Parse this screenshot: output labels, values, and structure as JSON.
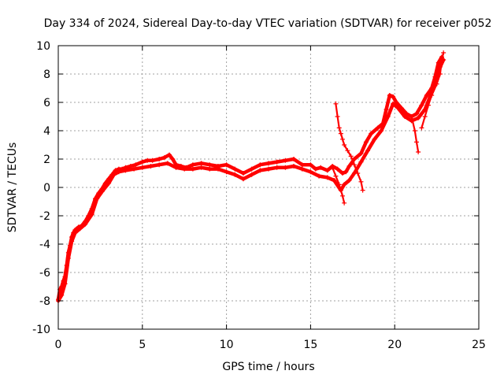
{
  "chart_data": {
    "type": "scatter",
    "title": "Day 334 of 2024, Sidereal Day-to-day VTEC variation (SDTVAR) for receiver p052",
    "xlabel": "GPS time / hours",
    "ylabel": "SDTVAR / TECUs",
    "xlim": [
      0,
      25
    ],
    "ylim": [
      -10,
      10
    ],
    "x_ticks": [
      0,
      5,
      10,
      15,
      20,
      25
    ],
    "y_ticks": [
      -10,
      -8,
      -6,
      -4,
      -2,
      0,
      2,
      4,
      6,
      8,
      10
    ],
    "grid": true,
    "marker": "+",
    "color": "#ff0000",
    "series": [
      {
        "points": [
          [
            0.0,
            -7.9
          ],
          [
            0.1,
            -7.2
          ],
          [
            0.2,
            -7.0
          ],
          [
            0.3,
            -6.6
          ],
          [
            0.4,
            -6.3
          ],
          [
            0.5,
            -5.5
          ],
          [
            0.6,
            -4.6
          ],
          [
            0.7,
            -4.1
          ],
          [
            0.8,
            -3.5
          ],
          [
            0.9,
            -3.2
          ],
          [
            1.0,
            -3.0
          ],
          [
            1.2,
            -2.8
          ],
          [
            1.4,
            -2.7
          ],
          [
            1.6,
            -2.4
          ],
          [
            1.8,
            -2.0
          ],
          [
            2.0,
            -1.5
          ],
          [
            2.2,
            -0.8
          ],
          [
            2.4,
            -0.4
          ],
          [
            2.6,
            -0.1
          ],
          [
            2.8,
            0.3
          ],
          [
            3.0,
            0.6
          ],
          [
            3.2,
            0.9
          ],
          [
            3.4,
            1.2
          ],
          [
            3.6,
            1.3
          ],
          [
            3.8,
            1.3
          ],
          [
            4.0,
            1.4
          ],
          [
            4.3,
            1.5
          ],
          [
            4.6,
            1.6
          ],
          [
            5.0,
            1.8
          ],
          [
            5.3,
            1.9
          ],
          [
            5.6,
            1.9
          ],
          [
            6.0,
            2.0
          ],
          [
            6.3,
            2.1
          ],
          [
            6.6,
            2.3
          ],
          [
            6.8,
            2.0
          ],
          [
            7.0,
            1.6
          ],
          [
            7.3,
            1.5
          ],
          [
            7.6,
            1.4
          ],
          [
            8.0,
            1.6
          ],
          [
            8.5,
            1.7
          ],
          [
            9.0,
            1.6
          ],
          [
            9.5,
            1.5
          ],
          [
            10.0,
            1.6
          ],
          [
            10.5,
            1.3
          ],
          [
            11.0,
            1.0
          ],
          [
            11.5,
            1.3
          ],
          [
            12.0,
            1.6
          ],
          [
            12.5,
            1.7
          ],
          [
            13.0,
            1.8
          ],
          [
            13.5,
            1.9
          ],
          [
            14.0,
            2.0
          ],
          [
            14.5,
            1.6
          ],
          [
            15.0,
            1.6
          ],
          [
            15.3,
            1.3
          ],
          [
            15.6,
            1.4
          ],
          [
            16.0,
            1.2
          ],
          [
            16.3,
            1.5
          ],
          [
            16.6,
            1.3
          ],
          [
            16.9,
            1.0
          ],
          [
            17.1,
            1.1
          ],
          [
            17.3,
            1.5
          ],
          [
            17.6,
            2.0
          ],
          [
            18.0,
            2.4
          ],
          [
            18.3,
            3.2
          ],
          [
            18.6,
            3.8
          ],
          [
            19.0,
            4.2
          ],
          [
            19.3,
            4.5
          ],
          [
            19.5,
            5.5
          ],
          [
            19.7,
            6.5
          ],
          [
            19.9,
            6.4
          ],
          [
            20.1,
            6.0
          ],
          [
            20.4,
            5.6
          ],
          [
            20.7,
            5.2
          ],
          [
            21.0,
            5.0
          ],
          [
            21.3,
            5.2
          ],
          [
            21.6,
            5.8
          ],
          [
            21.9,
            6.5
          ],
          [
            22.2,
            7.0
          ],
          [
            22.4,
            7.8
          ],
          [
            22.6,
            8.8
          ],
          [
            22.8,
            9.2
          ]
        ]
      },
      {
        "points": [
          [
            0.0,
            -8.0
          ],
          [
            0.2,
            -7.6
          ],
          [
            0.4,
            -6.8
          ],
          [
            0.6,
            -5.0
          ],
          [
            0.8,
            -3.8
          ],
          [
            1.0,
            -3.2
          ],
          [
            1.3,
            -2.9
          ],
          [
            1.6,
            -2.6
          ],
          [
            2.0,
            -1.9
          ],
          [
            2.3,
            -0.8
          ],
          [
            2.6,
            -0.3
          ],
          [
            3.0,
            0.3
          ],
          [
            3.3,
            0.9
          ],
          [
            3.6,
            1.1
          ],
          [
            4.0,
            1.2
          ],
          [
            4.5,
            1.3
          ],
          [
            5.0,
            1.4
          ],
          [
            5.5,
            1.5
          ],
          [
            6.0,
            1.6
          ],
          [
            6.5,
            1.7
          ],
          [
            7.0,
            1.4
          ],
          [
            7.5,
            1.3
          ],
          [
            8.0,
            1.3
          ],
          [
            8.5,
            1.4
          ],
          [
            9.0,
            1.3
          ],
          [
            9.5,
            1.3
          ],
          [
            10.0,
            1.1
          ],
          [
            10.5,
            0.9
          ],
          [
            11.0,
            0.6
          ],
          [
            11.5,
            0.9
          ],
          [
            12.0,
            1.2
          ],
          [
            12.5,
            1.3
          ],
          [
            13.0,
            1.4
          ],
          [
            13.5,
            1.4
          ],
          [
            14.0,
            1.5
          ],
          [
            14.5,
            1.3
          ],
          [
            15.0,
            1.1
          ],
          [
            15.5,
            0.8
          ],
          [
            16.0,
            0.7
          ],
          [
            16.4,
            0.5
          ],
          [
            16.8,
            -0.2
          ],
          [
            17.0,
            0.2
          ],
          [
            17.3,
            0.5
          ],
          [
            17.6,
            1.0
          ],
          [
            18.0,
            1.8
          ],
          [
            18.4,
            2.6
          ],
          [
            18.8,
            3.4
          ],
          [
            19.2,
            4.0
          ],
          [
            19.6,
            5.0
          ],
          [
            19.9,
            5.9
          ],
          [
            20.2,
            5.6
          ],
          [
            20.6,
            5.0
          ],
          [
            21.0,
            4.7
          ],
          [
            21.4,
            4.9
          ],
          [
            21.8,
            5.5
          ],
          [
            22.1,
            6.4
          ],
          [
            22.4,
            7.2
          ],
          [
            22.7,
            8.5
          ],
          [
            22.9,
            9.0
          ]
        ]
      },
      {
        "points": [
          [
            16.5,
            5.9
          ],
          [
            16.6,
            5.0
          ],
          [
            16.7,
            4.2
          ],
          [
            16.8,
            3.8
          ],
          [
            16.9,
            3.4
          ],
          [
            17.0,
            3.0
          ],
          [
            17.2,
            2.6
          ],
          [
            17.4,
            2.2
          ],
          [
            17.6,
            1.6
          ],
          [
            17.8,
            1.0
          ],
          [
            18.0,
            0.4
          ],
          [
            18.1,
            -0.2
          ]
        ]
      },
      {
        "points": [
          [
            16.3,
            1.4
          ],
          [
            16.5,
            0.8
          ],
          [
            16.7,
            0.2
          ],
          [
            16.9,
            -0.6
          ],
          [
            17.0,
            -1.1
          ]
        ]
      },
      {
        "points": [
          [
            21.0,
            5.0
          ],
          [
            21.2,
            4.0
          ],
          [
            21.3,
            3.2
          ],
          [
            21.4,
            2.5
          ]
        ]
      },
      {
        "points": [
          [
            21.6,
            4.2
          ],
          [
            21.8,
            5.0
          ],
          [
            22.0,
            5.8
          ],
          [
            22.2,
            6.5
          ],
          [
            22.5,
            7.3
          ],
          [
            22.7,
            8.0
          ],
          [
            22.8,
            9.0
          ],
          [
            22.9,
            9.5
          ]
        ]
      }
    ]
  }
}
